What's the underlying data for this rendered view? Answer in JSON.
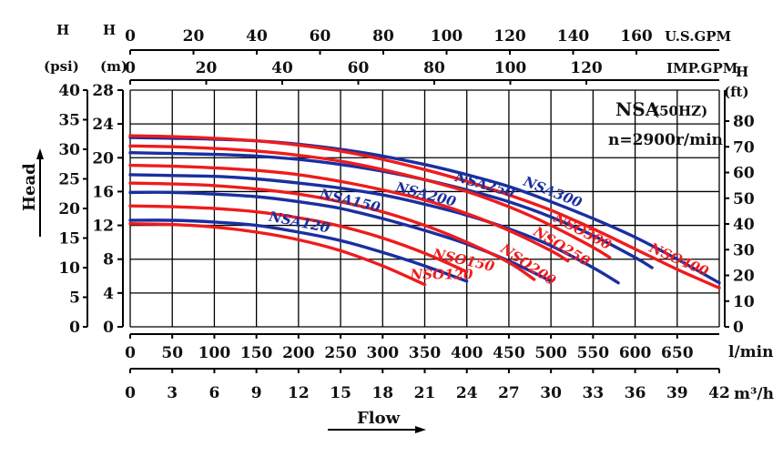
{
  "chart_data": {
    "type": "line",
    "title": "NSA",
    "title_suffix": "(50HZ)",
    "speed_label": "n=2900r/min",
    "x_axis": {
      "primary": {
        "unit": "l/min",
        "range": [
          0,
          700
        ],
        "ticks": [
          0,
          50,
          100,
          150,
          200,
          250,
          300,
          350,
          400,
          450,
          500,
          550,
          600,
          650
        ]
      },
      "m3h": {
        "unit": "m³/h",
        "range": [
          0,
          42
        ],
        "ticks": [
          0,
          3,
          6,
          9,
          12,
          15,
          18,
          21,
          24,
          27,
          30,
          33,
          36,
          39,
          42
        ]
      },
      "us_gpm": {
        "unit": "U.S.GPM",
        "ticks": [
          0,
          20,
          40,
          60,
          80,
          100,
          120,
          140,
          160
        ]
      },
      "imp_gpm": {
        "unit": "IMP.GPM",
        "ticks": [
          0,
          20,
          40,
          60,
          80,
          100,
          120
        ]
      },
      "label": "Flow"
    },
    "y_axis": {
      "primary": {
        "unit": "H (m)",
        "range": [
          0,
          28
        ],
        "ticks": [
          0,
          4,
          8,
          12,
          16,
          20,
          24,
          28
        ]
      },
      "psi": {
        "unit": "H (psi)",
        "ticks": [
          0,
          5,
          10,
          15,
          20,
          25,
          30,
          35,
          40
        ]
      },
      "ft": {
        "unit": "H (ft)",
        "ticks": [
          0,
          10,
          20,
          30,
          40,
          50,
          60,
          70,
          80
        ]
      },
      "label": "Head"
    },
    "grid": true,
    "colors": {
      "nsa": "#1a2fa0",
      "nso": "#ee1c1c"
    },
    "series": [
      {
        "name": "NSA120",
        "color": "#1a2fa0",
        "points": [
          [
            0,
            12.6
          ],
          [
            50,
            12.6
          ],
          [
            100,
            12.4
          ],
          [
            150,
            12.0
          ],
          [
            200,
            11.2
          ],
          [
            250,
            10.2
          ],
          [
            300,
            8.8
          ],
          [
            350,
            7.2
          ],
          [
            400,
            5.4
          ]
        ]
      },
      {
        "name": "NSA150",
        "color": "#1a2fa0",
        "points": [
          [
            0,
            15.9
          ],
          [
            50,
            15.9
          ],
          [
            100,
            15.7
          ],
          [
            150,
            15.4
          ],
          [
            200,
            14.8
          ],
          [
            250,
            14.0
          ],
          [
            300,
            12.8
          ],
          [
            350,
            11.4
          ],
          [
            400,
            9.8
          ],
          [
            450,
            7.8
          ],
          [
            500,
            5.4
          ]
        ]
      },
      {
        "name": "NSA200",
        "color": "#1a2fa0",
        "points": [
          [
            0,
            18.0
          ],
          [
            50,
            17.9
          ],
          [
            100,
            17.8
          ],
          [
            150,
            17.5
          ],
          [
            200,
            17.0
          ],
          [
            250,
            16.4
          ],
          [
            300,
            15.6
          ],
          [
            350,
            14.5
          ],
          [
            400,
            13.2
          ],
          [
            450,
            11.6
          ],
          [
            500,
            9.6
          ],
          [
            550,
            7.0
          ],
          [
            580,
            5.2
          ]
        ]
      },
      {
        "name": "NSA250",
        "color": "#1a2fa0",
        "points": [
          [
            0,
            20.6
          ],
          [
            50,
            20.5
          ],
          [
            100,
            20.4
          ],
          [
            150,
            20.2
          ],
          [
            200,
            19.8
          ],
          [
            250,
            19.2
          ],
          [
            300,
            18.4
          ],
          [
            350,
            17.4
          ],
          [
            400,
            16.2
          ],
          [
            450,
            14.8
          ],
          [
            500,
            13.0
          ],
          [
            550,
            10.8
          ],
          [
            600,
            8.2
          ],
          [
            620,
            7.0
          ]
        ]
      },
      {
        "name": "NSA300",
        "color": "#1a2fa0",
        "points": [
          [
            0,
            22.4
          ],
          [
            50,
            22.3
          ],
          [
            100,
            22.2
          ],
          [
            150,
            22.0
          ],
          [
            200,
            21.6
          ],
          [
            250,
            21.0
          ],
          [
            300,
            20.2
          ],
          [
            350,
            19.2
          ],
          [
            400,
            18.0
          ],
          [
            450,
            16.6
          ],
          [
            500,
            14.8
          ],
          [
            550,
            12.8
          ],
          [
            600,
            10.6
          ],
          [
            650,
            8.0
          ],
          [
            700,
            5.2
          ]
        ]
      },
      {
        "name": "NSO120",
        "color": "#ee1c1c",
        "points": [
          [
            0,
            12.2
          ],
          [
            50,
            12.1
          ],
          [
            100,
            11.8
          ],
          [
            150,
            11.2
          ],
          [
            200,
            10.3
          ],
          [
            250,
            9.0
          ],
          [
            300,
            7.2
          ],
          [
            350,
            5.0
          ]
        ]
      },
      {
        "name": "NSO150",
        "color": "#ee1c1c",
        "points": [
          [
            0,
            14.3
          ],
          [
            50,
            14.2
          ],
          [
            100,
            14.0
          ],
          [
            150,
            13.6
          ],
          [
            200,
            12.9
          ],
          [
            250,
            11.9
          ],
          [
            300,
            10.5
          ],
          [
            350,
            8.7
          ],
          [
            400,
            6.5
          ]
        ]
      },
      {
        "name": "NSO200",
        "color": "#ee1c1c",
        "points": [
          [
            0,
            17.0
          ],
          [
            50,
            16.9
          ],
          [
            100,
            16.7
          ],
          [
            150,
            16.3
          ],
          [
            200,
            15.7
          ],
          [
            250,
            14.8
          ],
          [
            300,
            13.6
          ],
          [
            350,
            12.0
          ],
          [
            400,
            10.0
          ],
          [
            450,
            7.6
          ],
          [
            480,
            5.6
          ]
        ]
      },
      {
        "name": "NSO250",
        "color": "#ee1c1c",
        "points": [
          [
            0,
            19.1
          ],
          [
            50,
            19.0
          ],
          [
            100,
            18.8
          ],
          [
            150,
            18.5
          ],
          [
            200,
            18.0
          ],
          [
            250,
            17.2
          ],
          [
            300,
            16.2
          ],
          [
            350,
            15.0
          ],
          [
            400,
            13.4
          ],
          [
            450,
            11.4
          ],
          [
            500,
            9.0
          ],
          [
            520,
            7.8
          ]
        ]
      },
      {
        "name": "NSO300",
        "color": "#ee1c1c",
        "points": [
          [
            0,
            21.4
          ],
          [
            50,
            21.3
          ],
          [
            100,
            21.1
          ],
          [
            150,
            20.8
          ],
          [
            200,
            20.3
          ],
          [
            250,
            19.6
          ],
          [
            300,
            18.6
          ],
          [
            350,
            17.4
          ],
          [
            400,
            16.0
          ],
          [
            450,
            14.2
          ],
          [
            500,
            12.0
          ],
          [
            550,
            9.4
          ],
          [
            570,
            8.2
          ]
        ]
      },
      {
        "name": "NSO400",
        "color": "#ee1c1c",
        "points": [
          [
            0,
            22.6
          ],
          [
            50,
            22.5
          ],
          [
            100,
            22.3
          ],
          [
            150,
            22.0
          ],
          [
            200,
            21.5
          ],
          [
            250,
            20.8
          ],
          [
            300,
            19.8
          ],
          [
            350,
            18.6
          ],
          [
            400,
            17.2
          ],
          [
            450,
            15.6
          ],
          [
            500,
            13.8
          ],
          [
            550,
            11.6
          ],
          [
            600,
            9.2
          ],
          [
            650,
            6.8
          ],
          [
            700,
            4.6
          ]
        ]
      }
    ]
  }
}
